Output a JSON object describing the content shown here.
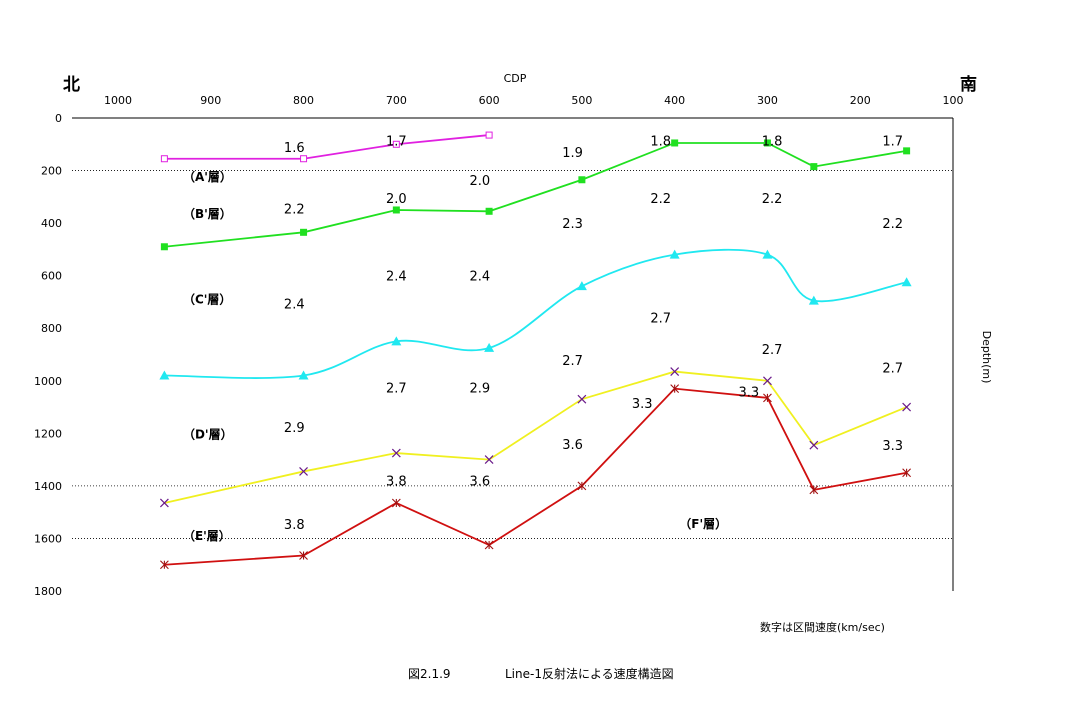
{
  "chart_data": {
    "type": "line",
    "x_axis_label": "CDP",
    "y_axis_label": "Depth(m)",
    "xlim": [
      1000,
      100
    ],
    "ylim": [
      0,
      1800
    ],
    "x_ticks": [
      1000,
      900,
      800,
      700,
      600,
      500,
      400,
      300,
      200,
      100
    ],
    "y_ticks": [
      0,
      200,
      400,
      600,
      800,
      1000,
      1200,
      1400,
      1600,
      1800
    ],
    "dotted_gridlines_y": [
      200,
      1400,
      1600
    ],
    "north_label": "北",
    "south_label": "南",
    "unit_note": "数字は区間速度(km/sec)",
    "figure_number": "図2.1.9",
    "figure_title": "Line-1反射法による速度構造図",
    "series": [
      {
        "color": "#e020e0",
        "marker": "square-open",
        "smooth": false,
        "points": [
          [
            950,
            155
          ],
          [
            800,
            155
          ],
          [
            700,
            100
          ],
          [
            600,
            65
          ]
        ]
      },
      {
        "color": "#20e020",
        "marker": "square",
        "smooth": false,
        "points": [
          [
            950,
            490
          ],
          [
            800,
            435
          ],
          [
            700,
            350
          ],
          [
            600,
            355
          ],
          [
            500,
            235
          ],
          [
            400,
            95
          ],
          [
            300,
            95
          ],
          [
            250,
            185
          ],
          [
            150,
            125
          ]
        ]
      },
      {
        "color": "#20e8f0",
        "marker": "triangle",
        "smooth": true,
        "points": [
          [
            950,
            980
          ],
          [
            800,
            980
          ],
          [
            700,
            850
          ],
          [
            600,
            875
          ],
          [
            500,
            640
          ],
          [
            400,
            520
          ],
          [
            300,
            520
          ],
          [
            250,
            695
          ],
          [
            150,
            625
          ]
        ]
      },
      {
        "color": "#f0f020",
        "marker": "x",
        "smooth": false,
        "points": [
          [
            950,
            1465
          ],
          [
            800,
            1345
          ],
          [
            700,
            1275
          ],
          [
            600,
            1300
          ],
          [
            500,
            1070
          ],
          [
            400,
            965
          ],
          [
            300,
            1000
          ],
          [
            250,
            1245
          ],
          [
            150,
            1100
          ]
        ]
      },
      {
        "color": "#d01010",
        "marker": "star",
        "smooth": false,
        "points": [
          [
            950,
            1700
          ],
          [
            800,
            1665
          ],
          [
            700,
            1465
          ],
          [
            600,
            1625
          ],
          [
            500,
            1400
          ],
          [
            400,
            1030
          ],
          [
            300,
            1065
          ],
          [
            250,
            1415
          ],
          [
            150,
            1350
          ]
        ]
      }
    ],
    "layer_labels": [
      {
        "text": "（A'層）",
        "x": 930,
        "y": 225
      },
      {
        "text": "（B'層）",
        "x": 930,
        "y": 365
      },
      {
        "text": "（C'層）",
        "x": 930,
        "y": 690
      },
      {
        "text": "（D'層）",
        "x": 930,
        "y": 1205
      },
      {
        "text": "（E'層）",
        "x": 930,
        "y": 1590
      },
      {
        "text": "（F'層）",
        "x": 395,
        "y": 1545
      }
    ],
    "velocity_labels": [
      {
        "text": "1.6",
        "x": 810,
        "y": 110
      },
      {
        "text": "1.7",
        "x": 700,
        "y": 85
      },
      {
        "text": "1.9",
        "x": 510,
        "y": 130
      },
      {
        "text": "1.8",
        "x": 415,
        "y": 85
      },
      {
        "text": "1.8",
        "x": 295,
        "y": 85
      },
      {
        "text": "1.7",
        "x": 165,
        "y": 85
      },
      {
        "text": "2.0",
        "x": 700,
        "y": 305
      },
      {
        "text": "2.0",
        "x": 610,
        "y": 235
      },
      {
        "text": "2.2",
        "x": 810,
        "y": 345
      },
      {
        "text": "2.3",
        "x": 510,
        "y": 400
      },
      {
        "text": "2.2",
        "x": 415,
        "y": 305
      },
      {
        "text": "2.2",
        "x": 295,
        "y": 305
      },
      {
        "text": "2.2",
        "x": 165,
        "y": 400
      },
      {
        "text": "2.4",
        "x": 700,
        "y": 600
      },
      {
        "text": "2.4",
        "x": 610,
        "y": 600
      },
      {
        "text": "2.4",
        "x": 810,
        "y": 705
      },
      {
        "text": "2.7",
        "x": 415,
        "y": 760
      },
      {
        "text": "2.7",
        "x": 295,
        "y": 880
      },
      {
        "text": "2.7",
        "x": 510,
        "y": 920
      },
      {
        "text": "2.7",
        "x": 165,
        "y": 950
      },
      {
        "text": "2.7",
        "x": 700,
        "y": 1025
      },
      {
        "text": "2.9",
        "x": 610,
        "y": 1025
      },
      {
        "text": "2.9",
        "x": 810,
        "y": 1175
      },
      {
        "text": "3.3",
        "x": 435,
        "y": 1085
      },
      {
        "text": "3.3",
        "x": 320,
        "y": 1040
      },
      {
        "text": "3.6",
        "x": 510,
        "y": 1240
      },
      {
        "text": "3.3",
        "x": 165,
        "y": 1245
      },
      {
        "text": "3.8",
        "x": 700,
        "y": 1380
      },
      {
        "text": "3.6",
        "x": 610,
        "y": 1380
      },
      {
        "text": "3.8",
        "x": 810,
        "y": 1545
      }
    ]
  }
}
